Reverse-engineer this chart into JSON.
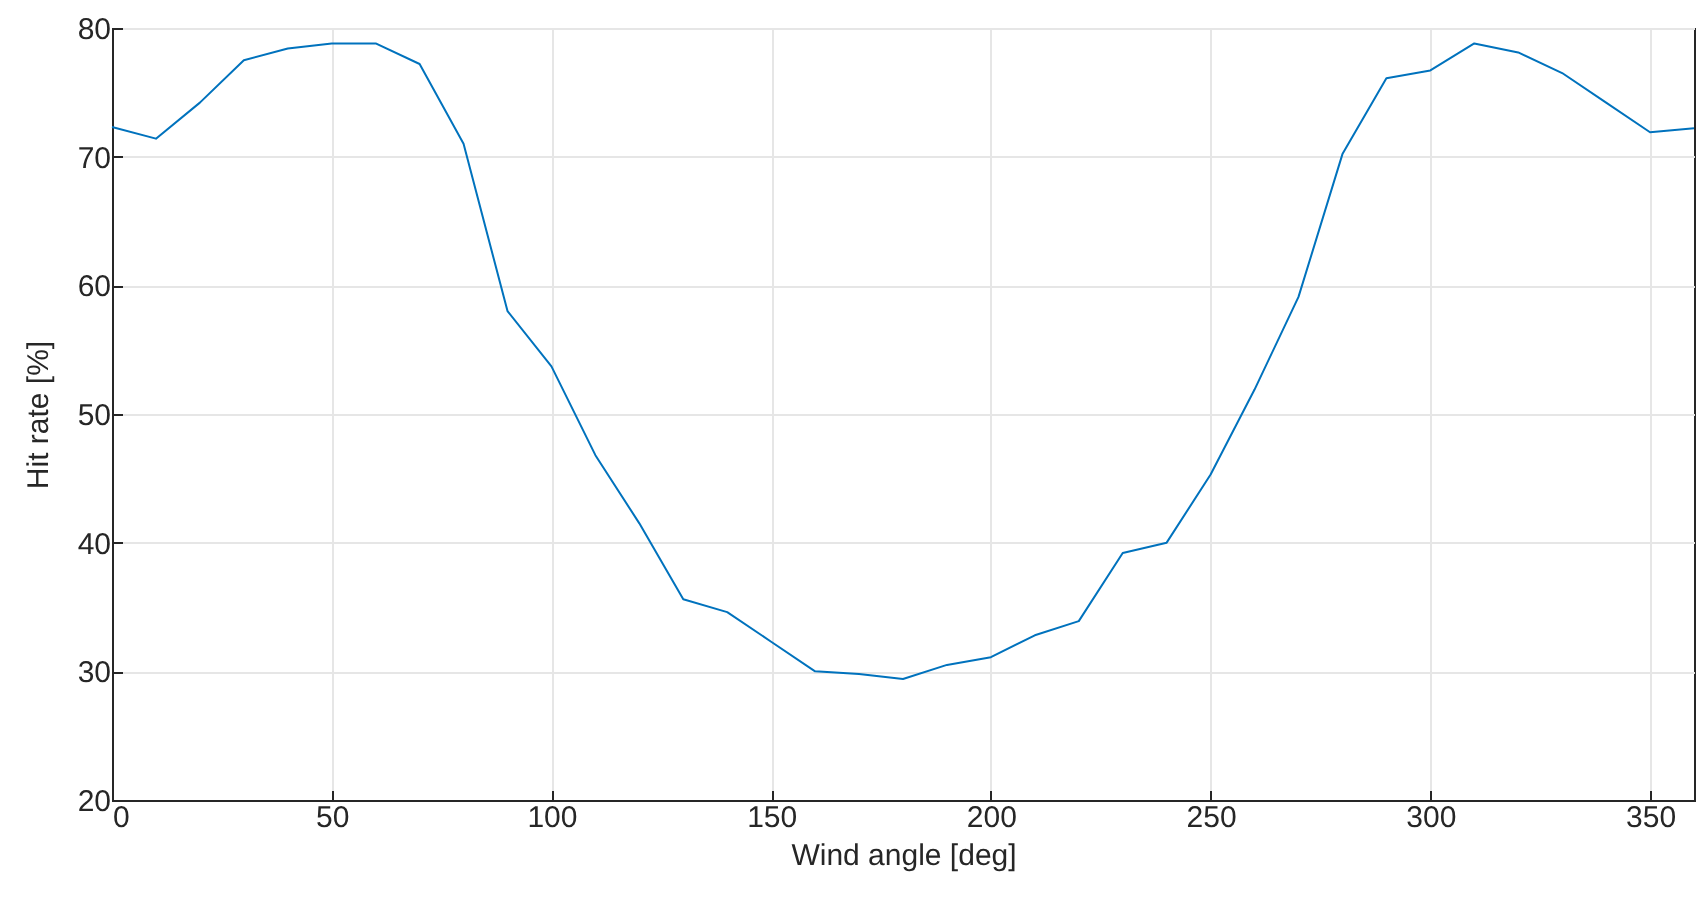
{
  "chart_data": {
    "type": "line",
    "xlabel": "Wind angle [deg]",
    "ylabel": "Hit rate [%]",
    "x": [
      0,
      10,
      20,
      30,
      40,
      50,
      60,
      70,
      80,
      90,
      100,
      110,
      120,
      130,
      140,
      150,
      160,
      170,
      180,
      190,
      200,
      210,
      220,
      230,
      240,
      250,
      260,
      270,
      280,
      290,
      300,
      310,
      320,
      330,
      340,
      350,
      360
    ],
    "series": [
      {
        "color": "#0072bd",
        "values": [
          72.3,
          71.4,
          74.2,
          77.5,
          78.4,
          78.8,
          78.8,
          77.2,
          71.0,
          58.0,
          53.7,
          46.8,
          41.5,
          35.6,
          34.6,
          32.3,
          30.0,
          29.8,
          29.4,
          30.5,
          31.1,
          32.8,
          33.9,
          39.2,
          40.0,
          45.3,
          51.9,
          59.1,
          70.2,
          76.1,
          76.7,
          78.8,
          78.1,
          76.5,
          74.2,
          71.9,
          72.2
        ]
      }
    ],
    "xlim": [
      0,
      360
    ],
    "xticks": [
      0,
      50,
      100,
      150,
      200,
      250,
      300,
      350
    ],
    "ylim": [
      20,
      80
    ],
    "yticks": [
      20,
      30,
      40,
      50,
      60,
      70,
      80
    ],
    "grid": true,
    "line_style": "solid",
    "marker": "none"
  }
}
